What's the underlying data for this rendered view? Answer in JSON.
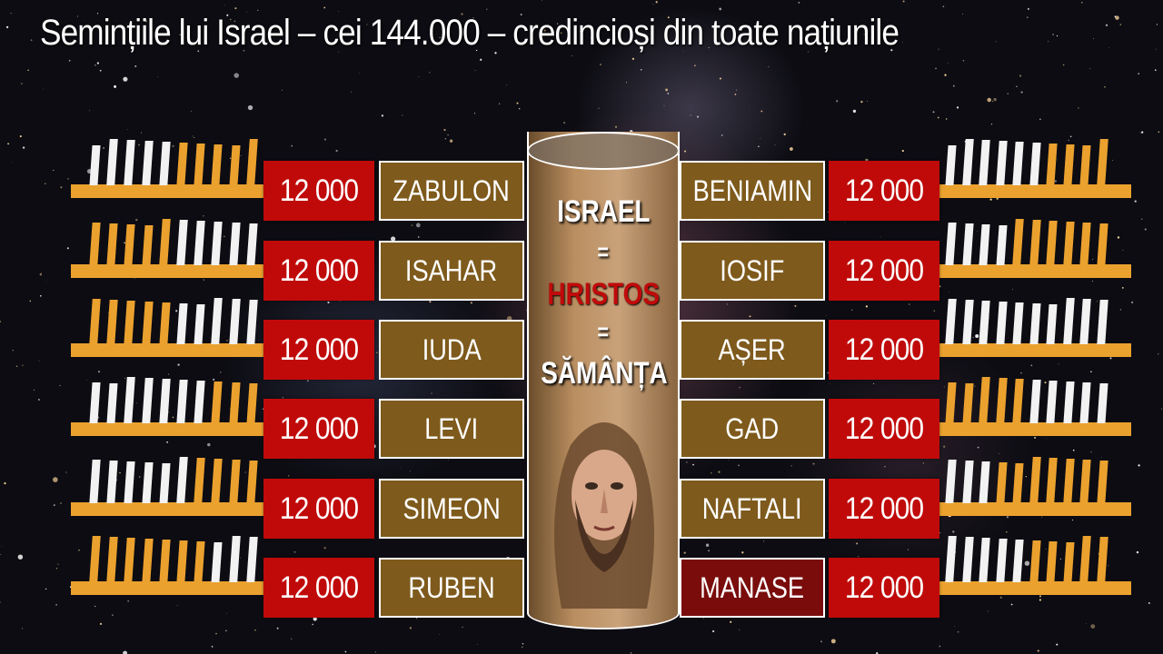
{
  "title": "Semințiile lui Israel – cei 144.000 – credincioși din toate națiunile",
  "colors": {
    "comb": "#eba12e",
    "count_box": "#c00a0a",
    "name_box": "#7e5a1c",
    "highlight_box": "#7a0c0c",
    "hristos": "#c00a0a"
  },
  "center": {
    "line1": "ISRAEL",
    "eq1": "=",
    "line2": "HRISTOS",
    "eq2": "=",
    "line3": "SĂMÂNȚA",
    "image": "jesus-portrait"
  },
  "left_tribes": [
    {
      "name": "ZABULON",
      "count": "12 000"
    },
    {
      "name": "ISAHAR",
      "count": "12 000"
    },
    {
      "name": "IUDA",
      "count": "12 000"
    },
    {
      "name": "LEVI",
      "count": "12 000"
    },
    {
      "name": "SIMEON",
      "count": "12 000"
    },
    {
      "name": "RUBEN",
      "count": "12 000"
    }
  ],
  "right_tribes": [
    {
      "name": "BENIAMIN",
      "count": "12 000"
    },
    {
      "name": "IOSIF",
      "count": "12 000"
    },
    {
      "name": "AȘER",
      "count": "12 000"
    },
    {
      "name": "GAD",
      "count": "12 000"
    },
    {
      "name": "NAFTALI",
      "count": "12 000"
    },
    {
      "name": "MANASE",
      "count": "12 000",
      "highlighted": true
    }
  ]
}
